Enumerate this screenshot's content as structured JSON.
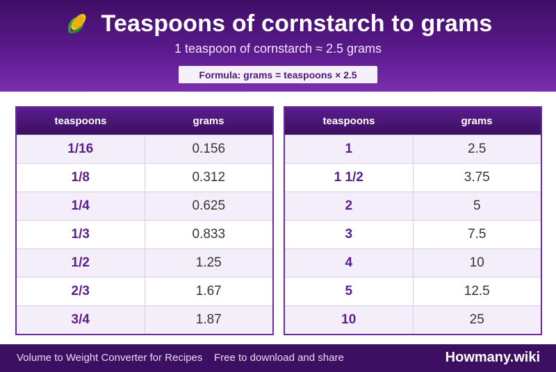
{
  "header": {
    "icon": "corn-icon",
    "title": "Teaspoons of cornstarch to grams",
    "subtitle": "1 teaspoon of cornstarch ≈ 2.5 grams",
    "formula": "Formula: grams = teaspoons × 2.5"
  },
  "colors": {
    "header_top": "#3f0e66",
    "header_bottom": "#7a2fb0",
    "accent": "#5a1e8c",
    "stripe": "#f4eefb",
    "footer": "#3c0f62"
  },
  "table_left": {
    "headers": [
      "teaspoons",
      "grams"
    ],
    "rows": [
      [
        "1/16",
        "0.156"
      ],
      [
        "1/8",
        "0.312"
      ],
      [
        "1/4",
        "0.625"
      ],
      [
        "1/3",
        "0.833"
      ],
      [
        "1/2",
        "1.25"
      ],
      [
        "2/3",
        "1.67"
      ],
      [
        "3/4",
        "1.87"
      ]
    ]
  },
  "table_right": {
    "headers": [
      "teaspoons",
      "grams"
    ],
    "rows": [
      [
        "1",
        "2.5"
      ],
      [
        "1 1/2",
        "3.75"
      ],
      [
        "2",
        "5"
      ],
      [
        "3",
        "7.5"
      ],
      [
        "4",
        "10"
      ],
      [
        "5",
        "12.5"
      ],
      [
        "10",
        "25"
      ]
    ]
  },
  "footer": {
    "left": "Volume to Weight Converter for Recipes",
    "middle": "Free to download and share",
    "brand": "Howmany.wiki"
  }
}
